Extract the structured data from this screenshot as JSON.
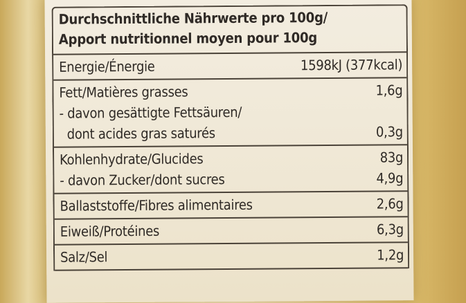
{
  "header": {
    "line1": "Durchschnittliche Nährwerte pro 100g/",
    "line2": "Apport nutritionnel moyen pour 100g"
  },
  "sections": [
    [
      {
        "label": "Energie/Énergie",
        "value": "1598kJ (377kcal)"
      }
    ],
    [
      {
        "label": "Fett/Matières grasses",
        "value": "1,6g"
      },
      {
        "label": "- davon gesättigte Fettsäuren/",
        "value": ""
      },
      {
        "label": "  dont acides gras saturés",
        "value": "0,3g"
      }
    ],
    [
      {
        "label": "Kohlenhydrate/Glucides",
        "value": "83g"
      },
      {
        "label": "- davon Zucker/dont sucres",
        "value": "4,9g"
      }
    ],
    [
      {
        "label": "Ballaststoffe/Fibres alimentaires",
        "value": "2,6g"
      }
    ],
    [
      {
        "label": "Eiweiß/Protéines",
        "value": "6,3g"
      }
    ],
    [
      {
        "label": "Salz/Sel",
        "value": "1,2g"
      }
    ]
  ]
}
